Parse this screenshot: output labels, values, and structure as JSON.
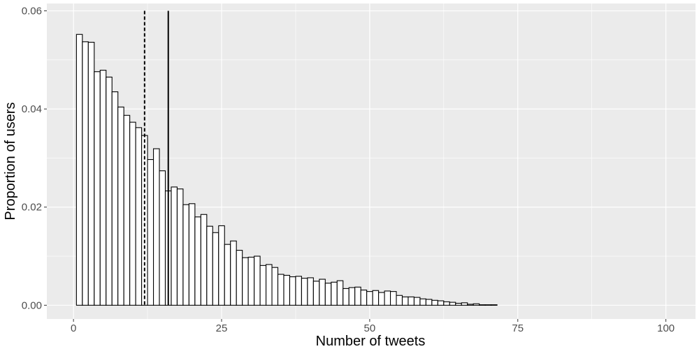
{
  "chart_data": {
    "type": "bar",
    "xlabel": "Number of tweets",
    "ylabel": "Proportion of users",
    "xlim": [
      -4.5,
      105
    ],
    "ylim": [
      -0.0028,
      0.0615
    ],
    "x_ticks": [
      0,
      25,
      50,
      75,
      100
    ],
    "x_tick_labels": [
      "0",
      "25",
      "50",
      "75",
      "100"
    ],
    "y_ticks": [
      0.0,
      0.02,
      0.04,
      0.06
    ],
    "y_tick_labels": [
      "0.00",
      "0.02",
      "0.04",
      "0.06"
    ],
    "bin_width": 1,
    "bin_centers": [
      1,
      2,
      3,
      4,
      5,
      6,
      7,
      8,
      9,
      10,
      11,
      12,
      13,
      14,
      15,
      16,
      17,
      18,
      19,
      20,
      21,
      22,
      23,
      24,
      25,
      26,
      27,
      28,
      29,
      30,
      31,
      32,
      33,
      34,
      35,
      36,
      37,
      38,
      39,
      40,
      41,
      42,
      43,
      44,
      45,
      46,
      47,
      48,
      49,
      50,
      51,
      52,
      53,
      54,
      55,
      56,
      57,
      58,
      59,
      60,
      61,
      62,
      63,
      64,
      65,
      66,
      67,
      68,
      69,
      70,
      71
    ],
    "values": [
      0.0552,
      0.0537,
      0.0536,
      0.0476,
      0.0479,
      0.0465,
      0.0435,
      0.0404,
      0.0387,
      0.0373,
      0.0362,
      0.0346,
      0.0297,
      0.0319,
      0.0274,
      0.0233,
      0.0241,
      0.0237,
      0.0205,
      0.0207,
      0.018,
      0.0185,
      0.0161,
      0.0148,
      0.0162,
      0.0124,
      0.0131,
      0.0112,
      0.0097,
      0.0098,
      0.01,
      0.0081,
      0.0083,
      0.0077,
      0.0063,
      0.0061,
      0.0058,
      0.0059,
      0.0055,
      0.0056,
      0.0049,
      0.0053,
      0.0045,
      0.0047,
      0.005,
      0.0034,
      0.0036,
      0.0037,
      0.0031,
      0.0028,
      0.003,
      0.0026,
      0.0029,
      0.0028,
      0.002,
      0.0017,
      0.0017,
      0.0016,
      0.0013,
      0.0012,
      0.001,
      0.0009,
      0.0007,
      0.0006,
      0.0004,
      0.0005,
      0.0002,
      0.0003,
      0.0001,
      0.0001,
      0.0001
    ],
    "vlines": [
      {
        "x": 12,
        "style": "dashed"
      },
      {
        "x": 16,
        "style": "solid"
      }
    ],
    "grid": true,
    "colors": {
      "panel_background": "#ebebeb",
      "grid_major": "#ffffff",
      "bar_fill": "#ffffff",
      "bar_stroke": "#000000",
      "vline": "#000000",
      "tick_label": "#4d4d4d"
    }
  }
}
